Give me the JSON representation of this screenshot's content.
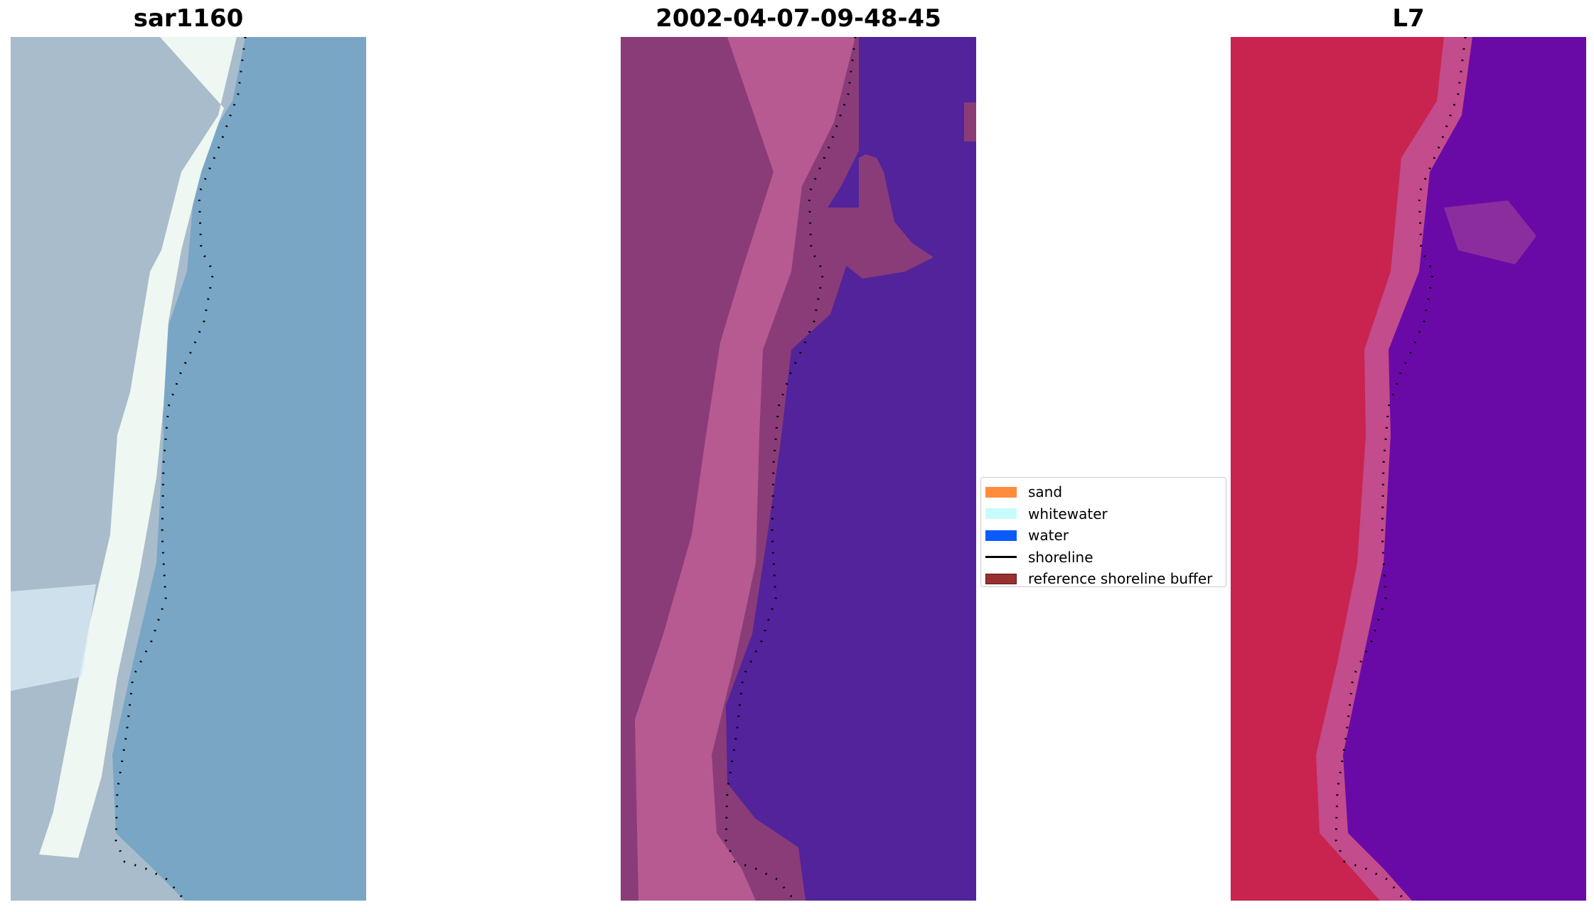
{
  "panels": [
    {
      "title": "sar1160",
      "style": "rgb"
    },
    {
      "title": "2002-04-07-09-48-45",
      "style": "classified"
    },
    {
      "title": "L7",
      "style": "index"
    }
  ],
  "legend": {
    "items": [
      {
        "label": "sand",
        "color": "#ff8c3a",
        "kind": "patch"
      },
      {
        "label": "whitewater",
        "color": "#c8fbfb",
        "kind": "patch"
      },
      {
        "label": "water",
        "color": "#0a5cff",
        "kind": "patch"
      },
      {
        "label": "shoreline",
        "color": "#000000",
        "kind": "line"
      },
      {
        "label": "reference shoreline buffer",
        "color": "#9a2f2f",
        "kind": "patch"
      }
    ]
  },
  "colors": {
    "rgb_water": "#7aa6c6",
    "rgb_land": "#a9bccb",
    "rgb_foam": "#eef7f2",
    "class_land": "#8a3c78",
    "class_buffer": "#b75a92",
    "class_water": "#52239a",
    "index_land": "#c8244f",
    "index_mid": "#c24c8c",
    "index_water": "#6a0aa6"
  }
}
